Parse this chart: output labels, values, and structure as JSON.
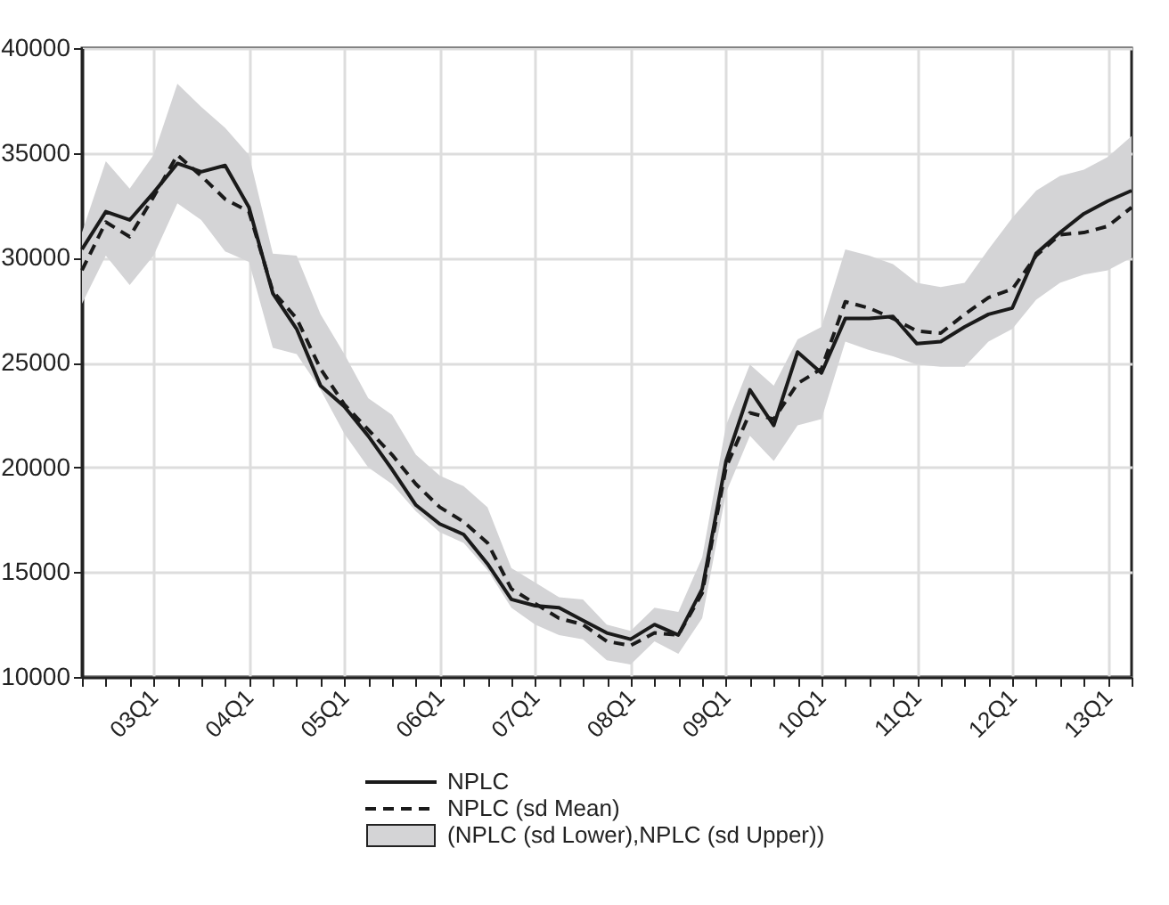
{
  "chart_data": {
    "type": "line",
    "categories": [
      null,
      null,
      null,
      "03Q1",
      null,
      null,
      null,
      "04Q1",
      null,
      null,
      null,
      "05Q1",
      null,
      null,
      null,
      "06Q1",
      null,
      null,
      null,
      "07Q1",
      null,
      null,
      null,
      "08Q1",
      null,
      null,
      null,
      "09Q1",
      null,
      null,
      null,
      "10Q1",
      null,
      null,
      null,
      "11Q1",
      null,
      null,
      null,
      "12Q1",
      null,
      null,
      null,
      "13Q1",
      null
    ],
    "series": [
      {
        "name": "NPLC",
        "color": "#1a1a1a",
        "line_style": "solid",
        "values": [
          30400,
          32200,
          31800,
          33100,
          34500,
          34100,
          34400,
          32400,
          28300,
          26600,
          23900,
          22900,
          21500,
          19900,
          18200,
          17300,
          16800,
          15400,
          13700,
          13400,
          13300,
          12700,
          12100,
          11800,
          12500,
          12000,
          14200,
          20300,
          23700,
          22000,
          25500,
          24500,
          27100,
          27100,
          27200,
          25900,
          26000,
          26700,
          27300,
          27600,
          30200,
          31200,
          32100,
          32700,
          33200
        ]
      },
      {
        "name": "NPLC (sd Mean)",
        "color": "#1a1a1a",
        "line_style": "dashed",
        "values": [
          29400,
          31700,
          31000,
          32900,
          34900,
          33900,
          32800,
          32200,
          28400,
          27100,
          24700,
          23000,
          21800,
          20600,
          19200,
          18100,
          17400,
          16400,
          14200,
          13500,
          12800,
          12500,
          11700,
          11500,
          12100,
          12000,
          14000,
          20000,
          22600,
          22300,
          24000,
          24700,
          27900,
          27600,
          27100,
          26500,
          26400,
          27300,
          28100,
          28500,
          30100,
          31100,
          31200,
          31500,
          32400
        ],
        "lower": [
          27800,
          30100,
          28700,
          30100,
          32600,
          31800,
          30300,
          29800,
          25700,
          25400,
          23700,
          21600,
          20000,
          19200,
          17900,
          16900,
          16400,
          15100,
          13300,
          12500,
          12000,
          11800,
          10800,
          10600,
          11700,
          11100,
          12800,
          18800,
          21500,
          20300,
          22000,
          22300,
          26000,
          25600,
          25300,
          24900,
          24800,
          24800,
          26000,
          26600,
          28000,
          28800,
          29200,
          29400,
          30000
        ],
        "upper": [
          31200,
          34600,
          33300,
          34900,
          38300,
          37200,
          36200,
          34900,
          30200,
          30100,
          27300,
          25400,
          23300,
          22500,
          20600,
          19600,
          19100,
          18100,
          15200,
          14500,
          13800,
          13700,
          12500,
          12200,
          13300,
          13100,
          15700,
          22000,
          24900,
          23900,
          26100,
          26700,
          30400,
          30100,
          29700,
          28800,
          28600,
          28800,
          30400,
          31900,
          33200,
          33900,
          34200,
          34800,
          35800
        ]
      }
    ],
    "annotations": [
      "(NPLC (sd Lower),NPLC (sd Upper))"
    ],
    "ylim": [
      10000,
      40000
    ],
    "yticks": [
      10000,
      15000,
      20000,
      25000,
      30000,
      35000,
      40000
    ],
    "grid": true,
    "legend": "bottom"
  }
}
